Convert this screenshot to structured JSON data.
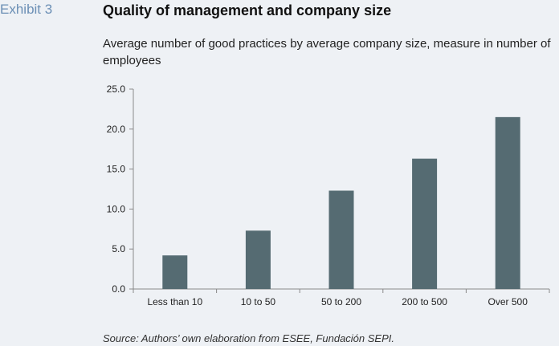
{
  "header": {
    "exhibit": "Exhibit 3",
    "title": "Quality of management and company size",
    "subtitle": "Average number of good practices by average company size, measure in number of employees"
  },
  "source": "Source: Authors’ own elaboration from ESEE, Fundación SEPI.",
  "colors": {
    "bar": "#556b72",
    "axis": "#8a8a8a",
    "background": "#eef1f5"
  },
  "chart_data": {
    "type": "bar",
    "categories": [
      "Less than 10",
      "10 to 50",
      "50 to 200",
      "200 to 500",
      "Over 500"
    ],
    "values": [
      4.2,
      7.3,
      12.3,
      16.3,
      21.5
    ],
    "ylim": [
      0,
      25
    ],
    "yticks": [
      "0.0",
      "5.0",
      "10.0",
      "15.0",
      "20.0",
      "25.0"
    ],
    "grid": false,
    "xlabel": "",
    "ylabel": ""
  }
}
